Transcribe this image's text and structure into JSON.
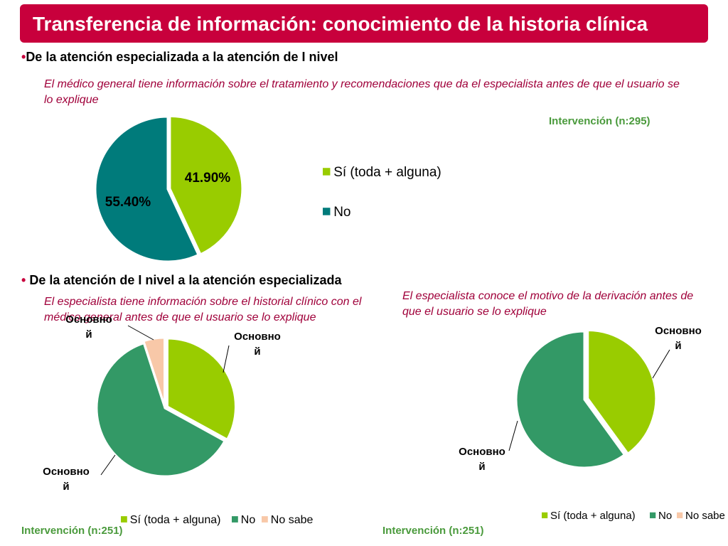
{
  "title": "Transferencia de información: conocimiento de la historia clínica",
  "section1": {
    "bullet": "•",
    "heading": "De la atención especializada a la atención de I nivel",
    "question": "El médico general tiene información sobre el tratamiento y recomendaciones que da el especialista antes de que el usuario se lo explique",
    "intervention": "Intervención (n:295)"
  },
  "section2": {
    "bullet": "•",
    "heading": "De la atención de I nivel a la atención especializada",
    "question_left": "El  especialista tiene información sobre el historial clínico con el médico general antes de que el usuario se lo explique",
    "question_right": "El  especialista conoce el motivo de la derivación antes de que el usuario se lo explique",
    "intervention_left": "Intervención (n:251)",
    "intervention_right": "Intervención (n:251)"
  },
  "colors": {
    "accent": "#c8003c",
    "lime": "#99cc00",
    "teal": "#007b7b",
    "green": "#339966",
    "peach": "#f8c8a8",
    "intervention_text": "#4a9a3c",
    "question_text": "#a0003a"
  },
  "chart_data": [
    {
      "type": "pie",
      "legend_position": "right",
      "series": [
        {
          "name": "Sí (toda + alguna)",
          "value": 41.9,
          "label": "41.90%",
          "color": "#99cc00"
        },
        {
          "name": "No",
          "value": 55.4,
          "label": "55.40%",
          "color": "#007b7b"
        }
      ]
    },
    {
      "type": "pie",
      "legend_position": "bottom",
      "series": [
        {
          "name": "Sí (toda + alguna)",
          "value": 33,
          "label": "Основной",
          "color": "#99cc00"
        },
        {
          "name": "No",
          "value": 62,
          "label": "Основной",
          "color": "#339966"
        },
        {
          "name": "No sabe",
          "value": 5,
          "label": "Основной",
          "color": "#f8c8a8"
        }
      ]
    },
    {
      "type": "pie",
      "legend_position": "bottom",
      "series": [
        {
          "name": "Sí (toda + alguna)",
          "value": 40,
          "label": "Основной",
          "color": "#99cc00"
        },
        {
          "name": "No",
          "value": 60,
          "label": "Основной",
          "color": "#339966"
        },
        {
          "name": "No sabe",
          "value": 0,
          "label": "",
          "color": "#f8c8a8"
        }
      ]
    }
  ]
}
